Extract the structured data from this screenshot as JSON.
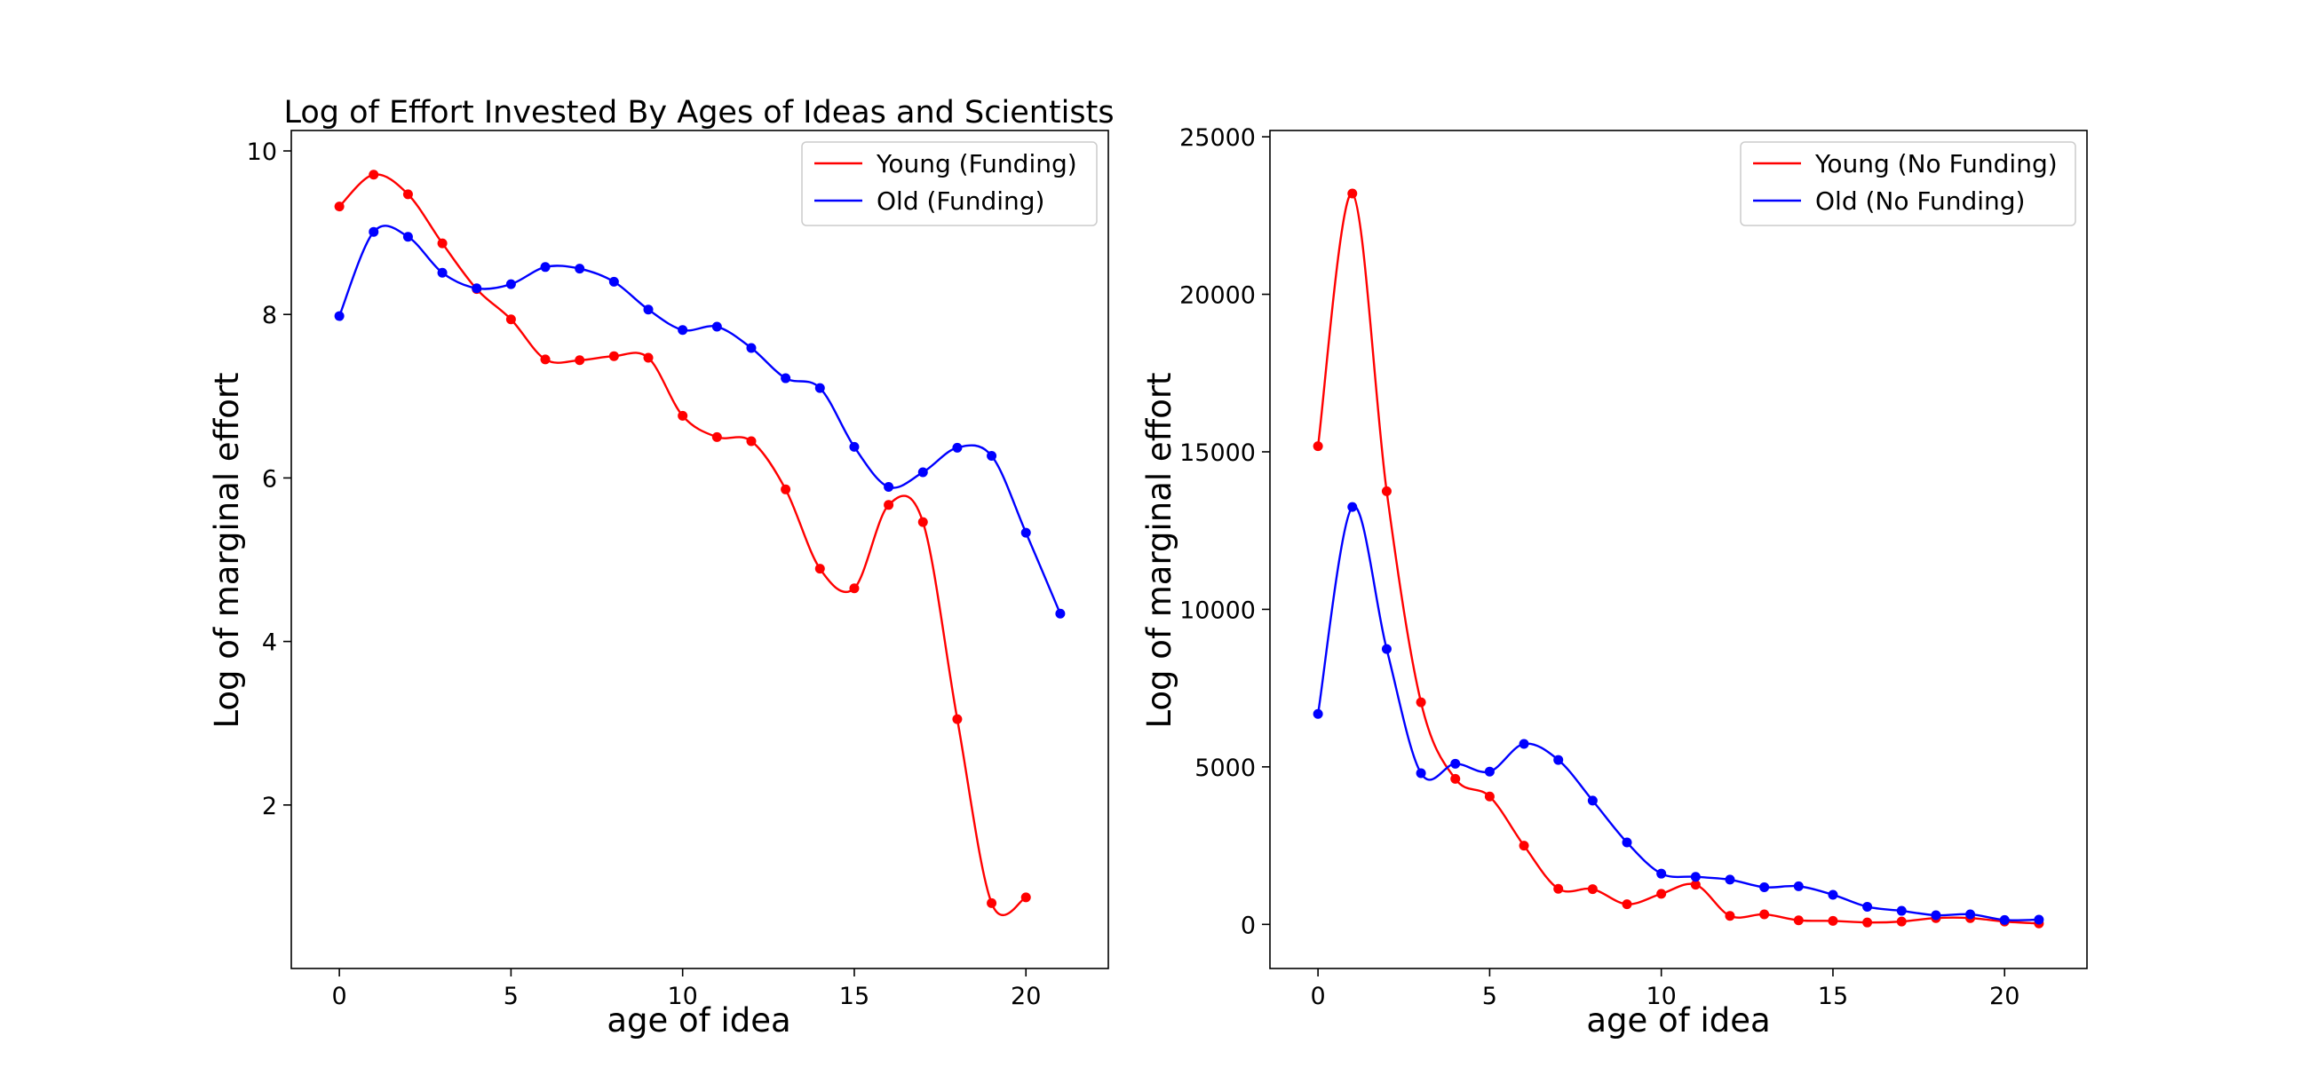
{
  "chart_data": [
    {
      "type": "line",
      "title": "Log of Effort Invested By Ages of Ideas and Scientists",
      "xlabel": "age of idea",
      "ylabel": "Log of marginal effort",
      "xlim": [
        -1.4,
        22.4
      ],
      "ylim": [
        0.0,
        10.25
      ],
      "xticks": [
        0,
        5,
        10,
        15,
        20
      ],
      "yticks": [
        2,
        4,
        6,
        8,
        10
      ],
      "grid": false,
      "legend_position": "top-right",
      "series": [
        {
          "name": "Young (Funding)",
          "color": "#ff0000",
          "x": [
            0,
            1,
            2,
            3,
            4,
            5,
            6,
            7,
            8,
            9,
            10,
            11,
            12,
            13,
            14,
            15,
            16,
            17,
            18,
            19,
            20
          ],
          "y": [
            9.32,
            9.71,
            9.47,
            8.87,
            8.31,
            7.94,
            7.45,
            7.44,
            7.49,
            7.47,
            6.76,
            6.5,
            6.45,
            5.86,
            4.89,
            4.65,
            5.67,
            5.46,
            3.05,
            0.8,
            0.87
          ]
        },
        {
          "name": "Old (Funding)",
          "color": "#0000ff",
          "x": [
            0,
            1,
            2,
            3,
            4,
            5,
            6,
            7,
            8,
            9,
            10,
            11,
            12,
            13,
            14,
            15,
            16,
            17,
            18,
            19,
            20,
            21
          ],
          "y": [
            7.98,
            9.01,
            8.95,
            8.51,
            8.32,
            8.37,
            8.58,
            8.56,
            8.4,
            8.06,
            7.81,
            7.85,
            7.59,
            7.22,
            7.1,
            6.38,
            5.89,
            6.07,
            6.37,
            6.27,
            5.33,
            4.34
          ]
        }
      ]
    },
    {
      "type": "line",
      "title": "",
      "xlabel": "age of idea",
      "ylabel": "Log of marginal effort",
      "xlim": [
        -1.4,
        22.4
      ],
      "ylim": [
        -1400,
        25200
      ],
      "xticks": [
        0,
        5,
        10,
        15,
        20
      ],
      "yticks": [
        0,
        5000,
        10000,
        15000,
        20000,
        25000
      ],
      "grid": false,
      "legend_position": "top-right",
      "series": [
        {
          "name": "Young (No Funding)",
          "color": "#ff0000",
          "x": [
            0,
            1,
            2,
            3,
            4,
            5,
            6,
            7,
            8,
            9,
            10,
            11,
            12,
            13,
            14,
            15,
            16,
            17,
            18,
            19,
            20,
            21
          ],
          "y": [
            15180,
            23200,
            13750,
            7050,
            4620,
            4060,
            2500,
            1130,
            1120,
            640,
            970,
            1260,
            270,
            320,
            130,
            110,
            60,
            90,
            200,
            200,
            90,
            30
          ]
        },
        {
          "name": "Old (No Funding)",
          "color": "#0000ff",
          "x": [
            0,
            1,
            2,
            3,
            4,
            5,
            6,
            7,
            8,
            9,
            10,
            11,
            12,
            13,
            14,
            15,
            16,
            17,
            18,
            19,
            20,
            21
          ],
          "y": [
            6680,
            13250,
            8740,
            4800,
            5100,
            4850,
            5730,
            5220,
            3930,
            2600,
            1610,
            1510,
            1420,
            1180,
            1210,
            940,
            560,
            430,
            290,
            320,
            140,
            150
          ]
        }
      ]
    }
  ]
}
